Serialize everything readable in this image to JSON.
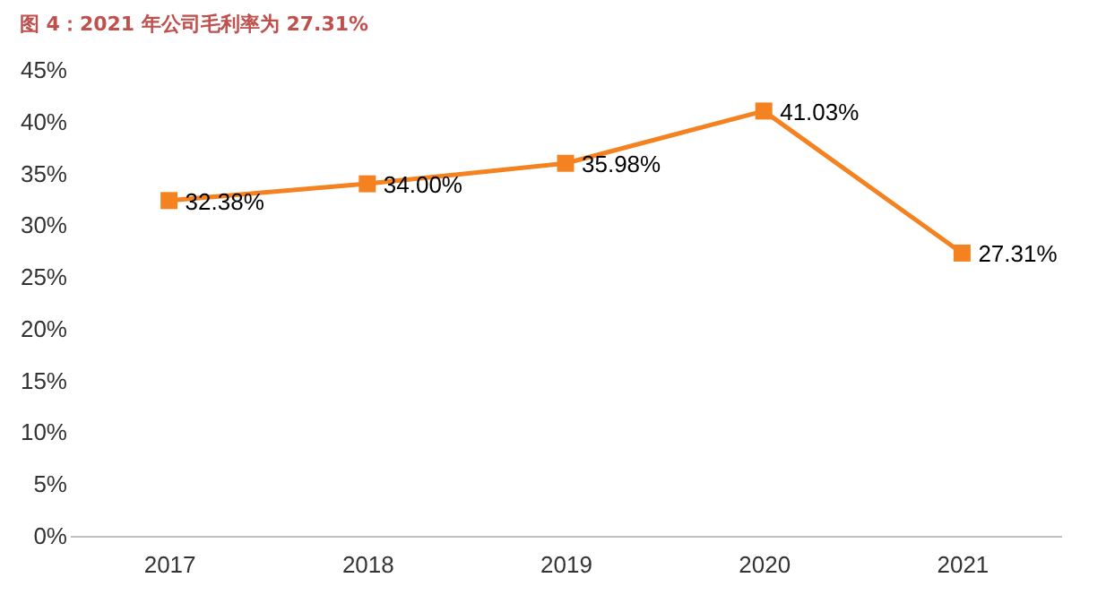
{
  "chart_data": {
    "type": "line",
    "title": "图 4：2021 年公司毛利率为 27.31%",
    "categories": [
      "2017",
      "2018",
      "2019",
      "2020",
      "2021"
    ],
    "series": [
      {
        "color": "#f58220",
        "values": [
          32.38,
          34.0,
          35.98,
          41.03,
          27.31
        ],
        "value_labels": [
          "32.38%",
          "34.00%",
          "35.98%",
          "41.03%",
          "27.31%"
        ]
      }
    ],
    "ylim": [
      0,
      45
    ],
    "yticks": [
      {
        "value": 0,
        "label": "0%"
      },
      {
        "value": 5,
        "label": "5%"
      },
      {
        "value": 10,
        "label": "10%"
      },
      {
        "value": 15,
        "label": "15%"
      },
      {
        "value": 20,
        "label": "20%"
      },
      {
        "value": 25,
        "label": "25%"
      },
      {
        "value": 30,
        "label": "30%"
      },
      {
        "value": 35,
        "label": "35%"
      },
      {
        "value": 40,
        "label": "40%"
      },
      {
        "value": 45,
        "label": "45%"
      }
    ],
    "grid": false,
    "marker": "square",
    "line_style": "solid"
  }
}
